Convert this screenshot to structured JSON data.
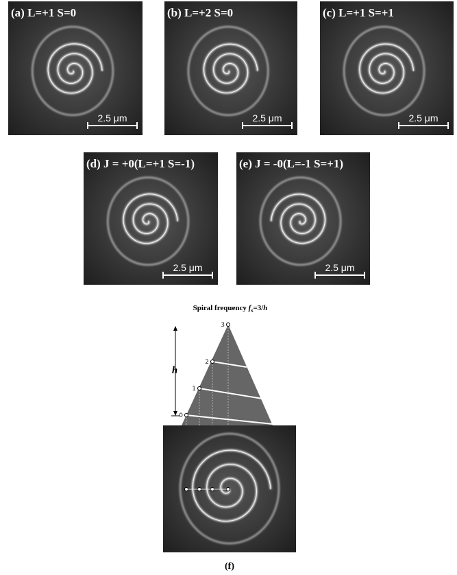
{
  "panels": [
    {
      "label": "(a) L=+1 S=0",
      "scale_bar": "2.5 μm"
    },
    {
      "label": "(b) L=+2 S=0",
      "scale_bar": "2.5 μm"
    },
    {
      "label": "(c) L=+1 S=+1",
      "scale_bar": "2.5 μm"
    },
    {
      "label": "(d) J = +0(L=+1 S=-1)",
      "scale_bar": "2.5 μm"
    },
    {
      "label": "(e) J = -0(L=-1 S=+1)",
      "scale_bar": "2.5 μm"
    }
  ],
  "diagram": {
    "title": {
      "text": "Spiral frequency ",
      "f": "f",
      "sub": "s",
      "rest": "=3/",
      "h": "h"
    },
    "height_label": "h",
    "levels": [
      "3",
      "2",
      "1",
      "0"
    ],
    "caption": "(f)"
  }
}
